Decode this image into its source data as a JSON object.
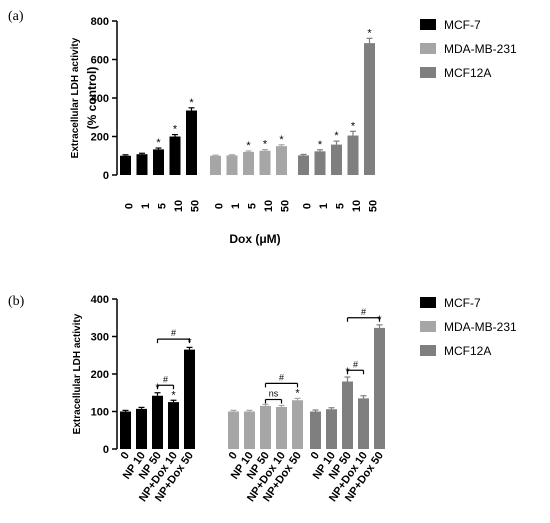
{
  "chart_data": [
    {
      "type": "bar",
      "panel_label": "(a)",
      "ylabel_line1": "Extracellular LDH activity",
      "ylabel_line2": "(% control)",
      "xlabel": "Dox (μM)",
      "ylim": [
        0,
        800
      ],
      "yticks": [
        "0",
        "200",
        "400",
        "600",
        "800"
      ],
      "grid": false,
      "legend_position": "right",
      "categories": [
        "0",
        "1",
        "5",
        "10",
        "50"
      ],
      "series": [
        {
          "name": "MCF-7",
          "color": "#000000",
          "values": [
            100,
            108,
            133,
            200,
            335
          ],
          "errors": [
            5,
            5,
            7,
            10,
            14
          ],
          "stars": [
            false,
            false,
            true,
            true,
            true
          ]
        },
        {
          "name": "MDA-MB-231",
          "color": "#a6a6a6",
          "values": [
            100,
            102,
            120,
            126,
            150
          ],
          "errors": [
            3,
            3,
            5,
            6,
            7
          ],
          "stars": [
            false,
            false,
            true,
            true,
            true
          ]
        },
        {
          "name": "MCF12A",
          "color": "#7f7f7f",
          "values": [
            102,
            123,
            158,
            205,
            685
          ],
          "errors": [
            5,
            8,
            18,
            22,
            25
          ],
          "stars": [
            false,
            true,
            true,
            true,
            true
          ]
        }
      ],
      "star_symbol": "*"
    },
    {
      "type": "bar",
      "panel_label": "(b)",
      "ylabel": "Extracellular LDH activity",
      "ylim": [
        0,
        400
      ],
      "yticks": [
        "0",
        "100",
        "200",
        "300",
        "400"
      ],
      "grid": false,
      "legend_position": "right",
      "categories": [
        "0",
        "NP 10",
        "NP 50",
        "NP+Dox 10",
        "NP+Dox 50"
      ],
      "series": [
        {
          "name": "MCF-7",
          "color": "#000000",
          "values": [
            100,
            107,
            142,
            125,
            265
          ],
          "errors": [
            3,
            4,
            8,
            5,
            6
          ],
          "stars": [
            false,
            false,
            true,
            true,
            true
          ]
        },
        {
          "name": "MDA-MB-231",
          "color": "#a6a6a6",
          "values": [
            100,
            100,
            115,
            112,
            130
          ],
          "errors": [
            3,
            3,
            4,
            4,
            5
          ],
          "stars": [
            false,
            false,
            false,
            false,
            true
          ]
        },
        {
          "name": "MCF12A",
          "color": "#7f7f7f",
          "values": [
            100,
            106,
            180,
            135,
            323
          ],
          "errors": [
            4,
            4,
            12,
            7,
            8
          ],
          "stars": [
            false,
            false,
            true,
            false,
            true
          ]
        }
      ],
      "star_symbol": "*",
      "significance": [
        {
          "series": 0,
          "from": 2,
          "to": 3,
          "label": "#",
          "level": 170
        },
        {
          "series": 0,
          "from": 2,
          "to": 4,
          "label": "#",
          "level": 293
        },
        {
          "series": 1,
          "from": 2,
          "to": 3,
          "label": "ns",
          "level": 132
        },
        {
          "series": 1,
          "from": 2,
          "to": 4,
          "label": "#",
          "level": 175
        },
        {
          "series": 2,
          "from": 2,
          "to": 3,
          "label": "#",
          "level": 210
        },
        {
          "series": 2,
          "from": 2,
          "to": 4,
          "label": "#",
          "level": 350
        }
      ]
    }
  ]
}
